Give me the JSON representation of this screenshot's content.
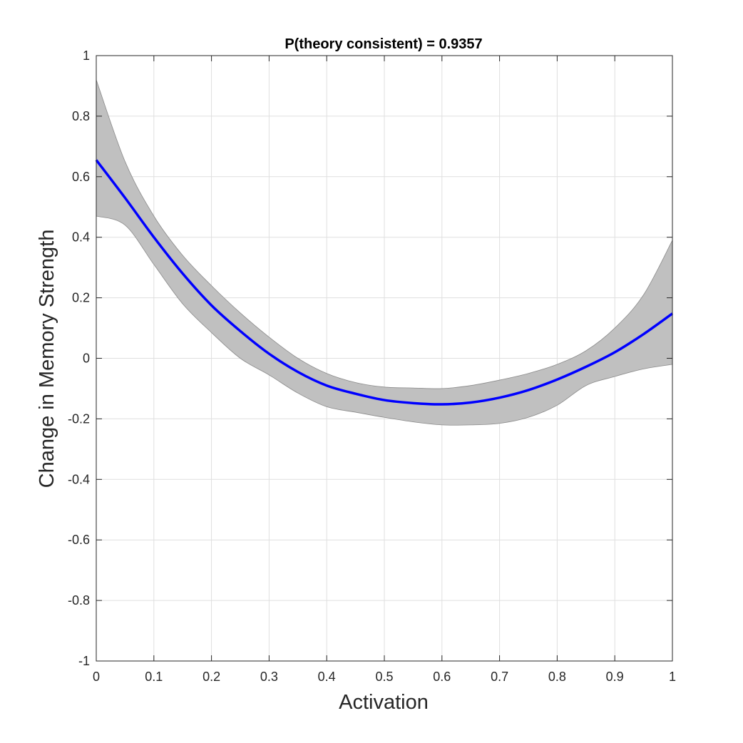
{
  "chart_data": {
    "type": "area",
    "title": "P(theory consistent) = 0.9357",
    "xlabel": "Activation",
    "ylabel": "Change in Memory Strength",
    "xlim": [
      0,
      1
    ],
    "ylim": [
      -1,
      1
    ],
    "xticks": [
      "0",
      "0.1",
      "0.2",
      "0.3",
      "0.4",
      "0.5",
      "0.6",
      "0.7",
      "0.8",
      "0.9",
      "1"
    ],
    "yticks": [
      "1",
      "0.8",
      "0.6",
      "0.4",
      "0.2",
      "0",
      "-0.2",
      "-0.4",
      "-0.6",
      "-0.8",
      "-1"
    ],
    "grid": true,
    "series": [
      {
        "role": "mean curve",
        "color": "#0000ff",
        "x": [
          0,
          0.05,
          0.1,
          0.15,
          0.2,
          0.25,
          0.3,
          0.35,
          0.4,
          0.45,
          0.5,
          0.55,
          0.6,
          0.65,
          0.7,
          0.75,
          0.8,
          0.85,
          0.9,
          0.95,
          1.0
        ],
        "y": [
          0.655,
          0.53,
          0.4,
          0.28,
          0.175,
          0.09,
          0.015,
          -0.045,
          -0.09,
          -0.117,
          -0.138,
          -0.148,
          -0.152,
          -0.146,
          -0.13,
          -0.105,
          -0.07,
          -0.028,
          0.02,
          0.08,
          0.148
        ]
      },
      {
        "role": "confidence band",
        "color": "#c0c0c0",
        "x": [
          0,
          0.05,
          0.1,
          0.15,
          0.2,
          0.25,
          0.3,
          0.35,
          0.4,
          0.45,
          0.5,
          0.55,
          0.6,
          0.65,
          0.7,
          0.75,
          0.8,
          0.85,
          0.9,
          0.95,
          1.0
        ],
        "upper": [
          0.92,
          0.65,
          0.47,
          0.34,
          0.24,
          0.15,
          0.07,
          0.0,
          -0.05,
          -0.08,
          -0.095,
          -0.098,
          -0.1,
          -0.09,
          -0.072,
          -0.05,
          -0.02,
          0.025,
          0.1,
          0.21,
          0.39
        ],
        "lower": [
          0.47,
          0.44,
          0.31,
          0.18,
          0.085,
          0.0,
          -0.055,
          -0.115,
          -0.16,
          -0.178,
          -0.195,
          -0.21,
          -0.22,
          -0.22,
          -0.215,
          -0.195,
          -0.155,
          -0.09,
          -0.06,
          -0.035,
          -0.02
        ]
      }
    ]
  }
}
